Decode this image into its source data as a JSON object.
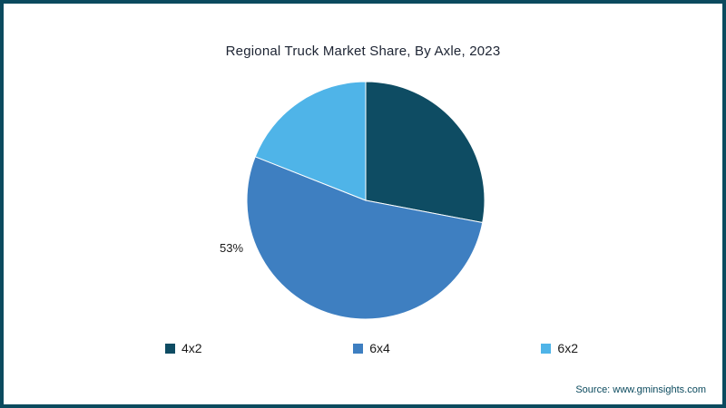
{
  "title": "Regional Truck Market Share, By Axle, 2023",
  "source": "Source: www.gminsights.com",
  "frame_color": "#0b4a5e",
  "chart_data": {
    "type": "pie",
    "title": "Regional Truck Market Share, By Axle, 2023",
    "categories": [
      "4x2",
      "6x4",
      "6x2"
    ],
    "values": [
      28,
      53,
      19
    ],
    "colors": [
      "#0e4c63",
      "#3e7fc1",
      "#4fb4e8"
    ],
    "start_angle_deg": 0,
    "direction": "clockwise",
    "data_labels": [
      {
        "category": "6x4",
        "label": "53%"
      }
    ],
    "legend_position": "bottom"
  },
  "legend": {
    "items": [
      {
        "label": "4x2",
        "color": "#0e4c63"
      },
      {
        "label": "6x4",
        "color": "#3e7fc1"
      },
      {
        "label": "6x2",
        "color": "#4fb4e8"
      }
    ]
  }
}
